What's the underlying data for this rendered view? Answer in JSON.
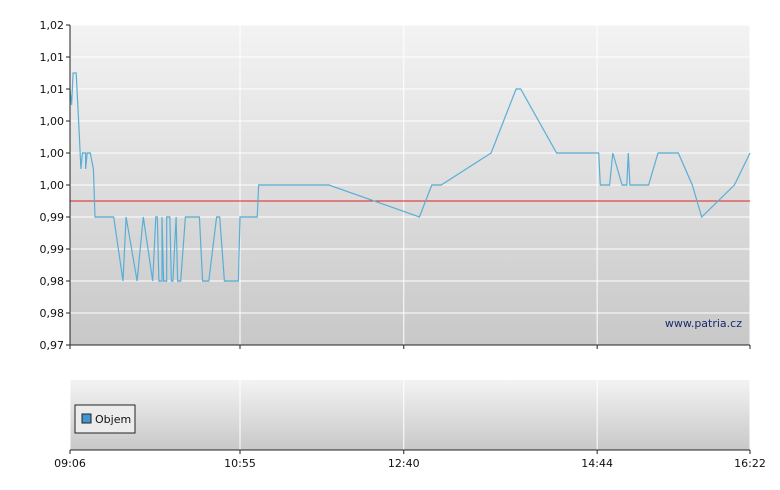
{
  "chart_data": [
    {
      "type": "line",
      "title": "",
      "xlabel": "",
      "ylabel": "",
      "y_tick_labels": [
        "1,02",
        "1,01",
        "1,01",
        "1,00",
        "1,00",
        "1,00",
        "0,99",
        "0,99",
        "0,98",
        "0,98",
        "0,97"
      ],
      "y_tick_values": [
        1.02,
        1.015,
        1.01,
        1.005,
        1.0,
        0.995,
        0.99,
        0.985,
        0.98,
        0.975,
        0.97
      ],
      "ylim": [
        0.97,
        1.02
      ],
      "x_tick_labels": [
        "09:06",
        "10:55",
        "12:40",
        "14:44",
        "16:22"
      ],
      "x_tick_minutes": [
        546,
        655,
        760,
        884,
        982
      ],
      "xlim": [
        546,
        982
      ],
      "grid": true,
      "reference_line": {
        "value": 0.9925,
        "color": "#dd2222"
      },
      "watermark": "www.patria.cz",
      "series": [
        {
          "color": "#5aaed6",
          "x": [
            "09:06",
            "09:07",
            "09:08",
            "09:09",
            "09:10",
            "09:11",
            "09:12",
            "09:13",
            "09:13",
            "09:14",
            "09:16",
            "09:16",
            "09:17",
            "09:19",
            "09:21",
            "09:22",
            "09:30",
            "09:34",
            "09:40",
            "09:42",
            "09:49",
            "09:53",
            "09:59",
            "10:01",
            "10:02",
            "10:03",
            "10:04",
            "10:05",
            "10:05",
            "10:06",
            "10:08",
            "10:08",
            "10:10",
            "10:11",
            "10:12",
            "10:12",
            "10:14",
            "10:15",
            "10:17",
            "10:20",
            "10:22",
            "10:29",
            "10:31",
            "10:35",
            "10:40",
            "10:42",
            "10:45",
            "10:47",
            "10:48",
            "10:51",
            "10:54",
            "10:55",
            "10:58",
            "10:59",
            "11:06",
            "11:07",
            "11:16",
            "11:22",
            "11:29",
            "11:47",
            "11:52",
            "12:50",
            "12:58",
            "13:04",
            "13:36",
            "13:52",
            "13:55",
            "14:18",
            "14:42",
            "14:43",
            "14:44",
            "14:45",
            "14:46",
            "14:48",
            "14:52",
            "14:54",
            "15:00",
            "15:03",
            "15:04",
            "15:05",
            "15:17",
            "15:23",
            "15:36",
            "15:45",
            "15:51",
            "16:12",
            "16:22"
          ],
          "values": [
            1.01,
            1.0075,
            1.0125,
            1.0125,
            1.0125,
            1.0075,
            1.0025,
            0.9975,
            0.9975,
            1.0,
            1.0,
            0.9975,
            1.0,
            1.0,
            0.9975,
            0.99,
            0.99,
            0.99,
            0.98,
            0.99,
            0.98,
            0.99,
            0.98,
            0.99,
            0.99,
            0.98,
            0.98,
            0.98,
            0.99,
            0.98,
            0.98,
            0.99,
            0.99,
            0.98,
            0.98,
            0.98,
            0.99,
            0.98,
            0.98,
            0.99,
            0.99,
            0.99,
            0.98,
            0.98,
            0.99,
            0.99,
            0.98,
            0.98,
            0.98,
            0.98,
            0.98,
            0.99,
            0.99,
            0.99,
            0.99,
            0.995,
            0.995,
            0.995,
            0.995,
            0.995,
            0.995,
            0.99,
            0.995,
            0.995,
            1.0,
            1.01,
            1.01,
            1.0,
            1.0,
            1.0,
            1.0,
            1.0,
            0.995,
            0.995,
            0.995,
            1.0,
            0.995,
            0.995,
            1.0,
            0.995,
            0.995,
            1.0,
            1.0,
            0.995,
            0.99,
            0.995,
            1.0
          ]
        }
      ]
    },
    {
      "type": "bar",
      "title": "",
      "legend": [
        "Objem"
      ],
      "legend_color": "#3f98cf",
      "x_tick_labels": [
        "09:06",
        "10:55",
        "12:40",
        "14:44",
        "16:22"
      ],
      "series": []
    }
  ]
}
